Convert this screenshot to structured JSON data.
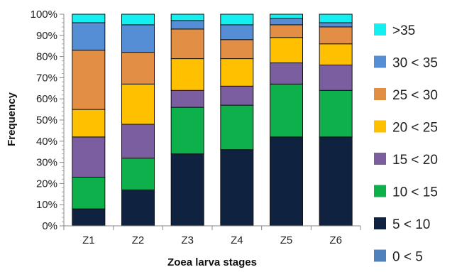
{
  "chart_data": {
    "type": "bar",
    "stacked": true,
    "percent": true,
    "xlabel": "Zoea larva  stages",
    "ylabel": "Frequency",
    "ylim": [
      0,
      100
    ],
    "yticks": [
      "0%",
      "10%",
      "20%",
      "30%",
      "40%",
      "50%",
      "60%",
      "70%",
      "80%",
      "90%",
      "100%"
    ],
    "categories": [
      "Z1",
      "Z2",
      "Z3",
      "Z4",
      "Z5",
      "Z6"
    ],
    "grid": false,
    "legend_position": "right",
    "series": [
      {
        "name": "0 < 5",
        "color": "#4f81bd",
        "values": [
          0,
          0,
          0,
          0,
          0,
          0
        ]
      },
      {
        "name": "5 < 10",
        "color": "#0f2340",
        "values": [
          8,
          17,
          34,
          36,
          42,
          42
        ]
      },
      {
        "name": "10 < 15",
        "color": "#0eb04b",
        "values": [
          15,
          15,
          22,
          21,
          25,
          22
        ]
      },
      {
        "name": "15 < 20",
        "color": "#7a5ea0",
        "values": [
          19,
          16,
          8,
          9,
          10,
          12
        ]
      },
      {
        "name": "20 < 25",
        "color": "#ffc000",
        "values": [
          13,
          19,
          15,
          13,
          12,
          10
        ]
      },
      {
        "name": "25 < 30",
        "color": "#e28e45",
        "values": [
          28,
          15,
          14,
          9,
          6,
          8
        ]
      },
      {
        "name": "30 < 35",
        "color": "#558ed5",
        "values": [
          13,
          13,
          4,
          7,
          3,
          2
        ]
      },
      {
        "name": ">35",
        "color": "#14f0f0",
        "values": [
          4,
          5,
          3,
          5,
          2,
          4
        ]
      }
    ]
  }
}
